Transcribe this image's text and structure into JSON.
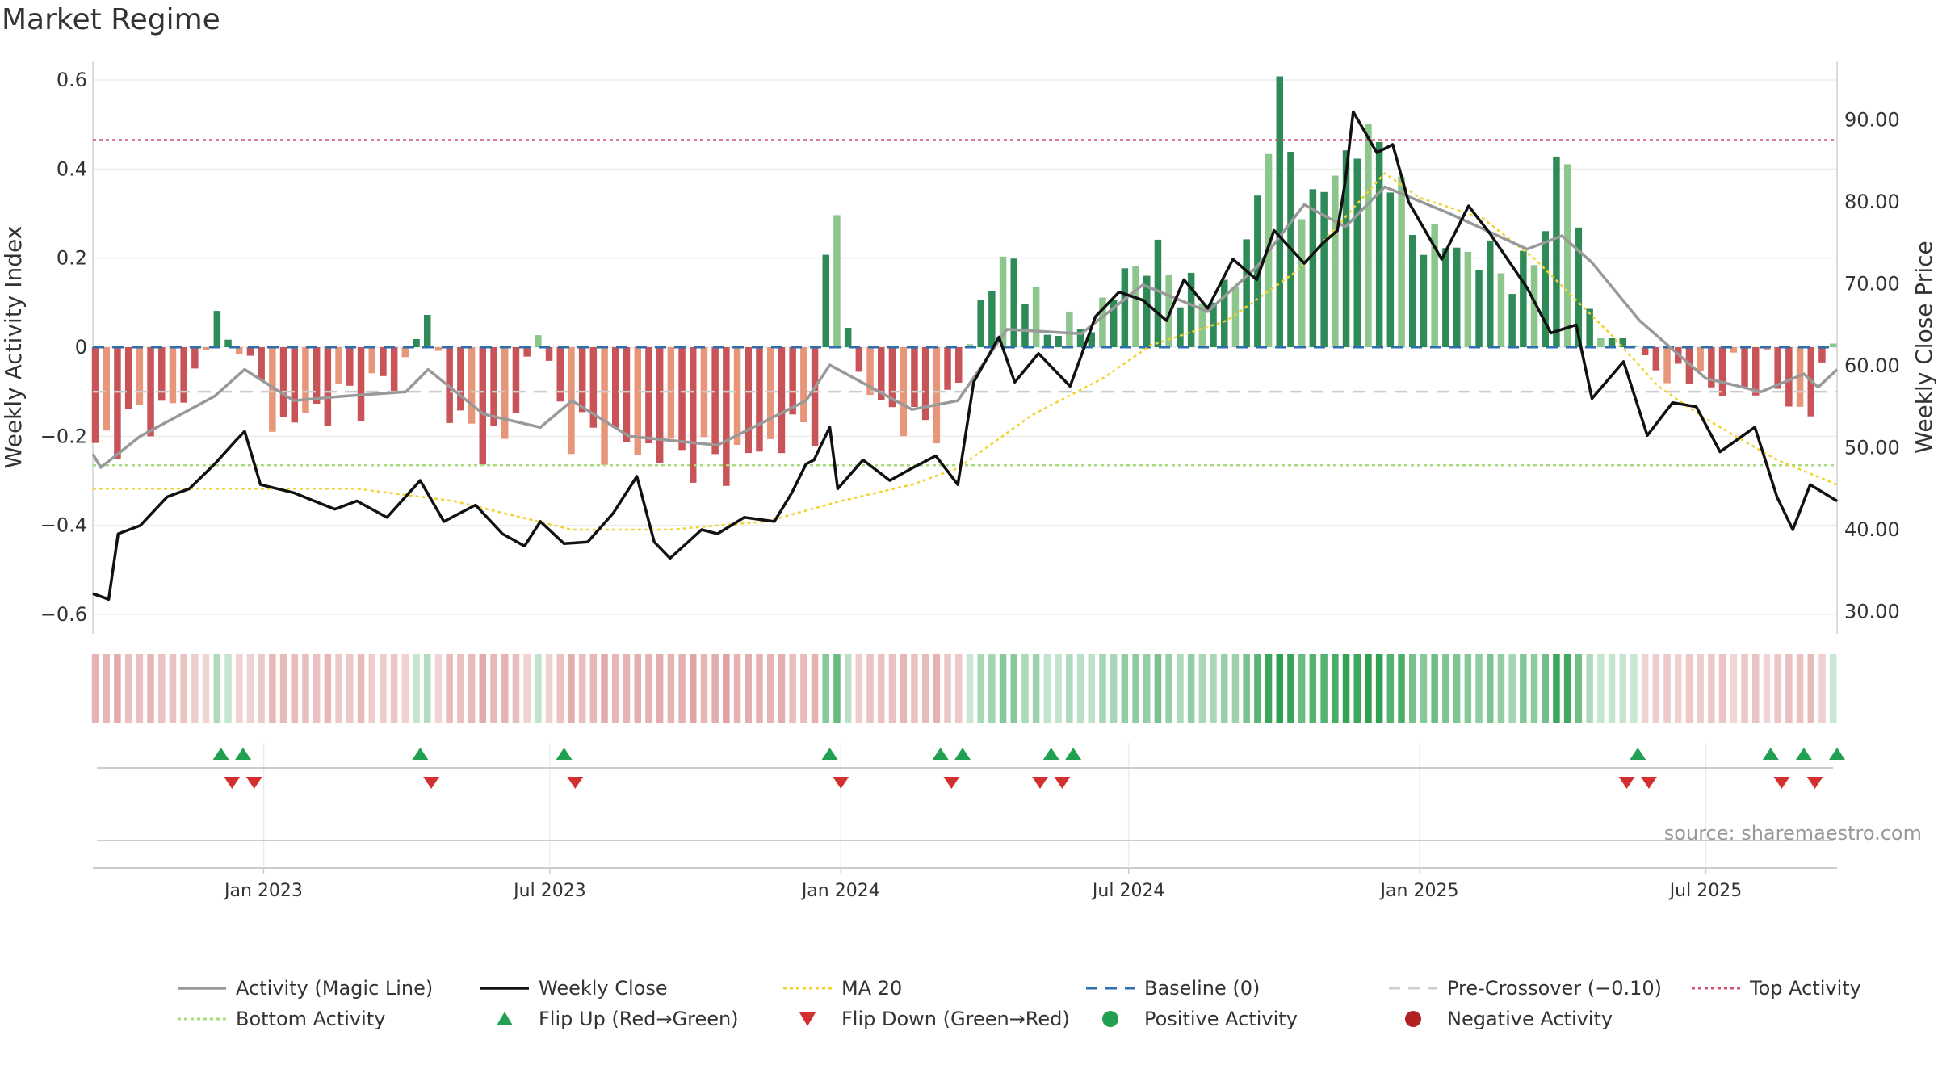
{
  "title": "Market Regime",
  "source": "source: sharemaestro.com",
  "colors": {
    "magic_line": "#999999",
    "close": "#111111",
    "ma20": "#f2d22e",
    "baseline": "#2f6fad",
    "pre_crossover": "#cccccc",
    "top_activity": "#d1526e",
    "bottom_activity": "#a8dc7a",
    "flip_up": "#22a052",
    "flip_down": "#d32f2f",
    "positive": "#22a052",
    "negative": "#b22222",
    "dark_green": "#2e8b57",
    "light_green": "#8cc68c",
    "dark_red": "#c95458",
    "light_red": "#e8967a"
  },
  "chart_data": {
    "type": "bar",
    "title": "Market Regime",
    "ylabel": "Weekly Activity Index",
    "y2label": "Weekly Close Price",
    "ylim": [
      -0.6,
      0.6
    ],
    "y2lim": [
      30,
      90
    ],
    "yticks": [
      "0.6",
      "0.4",
      "0.2",
      "0",
      "−0.2",
      "−0.4",
      "−0.6"
    ],
    "y2ticks": [
      "90.00",
      "80.00",
      "70.00",
      "60.00",
      "50.00",
      "40.00",
      "30.00"
    ],
    "xtick_labels": [
      "Jan 2023",
      "Jul 2023",
      "Jan 2024",
      "Jul 2024",
      "Jan 2025",
      "Jul 2025"
    ],
    "date_range": [
      "2022-09-15",
      "2025-09-22"
    ],
    "reference_lines": {
      "baseline": 0,
      "pre_crossover": -0.1,
      "top_activity": 0.465,
      "bottom_activity": -0.265
    },
    "activity_keypoints": [
      [
        "2022-09-15",
        -0.24
      ],
      [
        "2022-10-01",
        -0.18
      ],
      [
        "2022-10-20",
        -0.15
      ],
      [
        "2022-11-10",
        -0.12
      ],
      [
        "2022-12-01",
        0.05
      ],
      [
        "2022-12-20",
        -0.04
      ],
      [
        "2023-01-10",
        -0.18
      ],
      [
        "2023-02-15",
        -0.12
      ],
      [
        "2023-03-20",
        -0.08
      ],
      [
        "2023-04-15",
        0.07
      ],
      [
        "2023-05-01",
        -0.18
      ],
      [
        "2023-06-01",
        -0.22
      ],
      [
        "2023-06-20",
        0.05
      ],
      [
        "2023-07-10",
        -0.18
      ],
      [
        "2023-08-15",
        -0.22
      ],
      [
        "2023-09-20",
        -0.24
      ],
      [
        "2023-10-20",
        -0.26
      ],
      [
        "2023-11-20",
        -0.21
      ],
      [
        "2023-12-15",
        -0.16
      ],
      [
        "2023-12-25",
        0.37
      ],
      [
        "2024-01-10",
        -0.08
      ],
      [
        "2024-02-15",
        -0.18
      ],
      [
        "2024-03-10",
        -0.14
      ],
      [
        "2024-03-25",
        0.06
      ],
      [
        "2024-04-15",
        0.22
      ],
      [
        "2024-05-10",
        0.02
      ],
      [
        "2024-06-01",
        0.04
      ],
      [
        "2024-07-10",
        0.21
      ],
      [
        "2024-08-15",
        0.1
      ],
      [
        "2024-09-10",
        0.17
      ],
      [
        "2024-10-01",
        0.58
      ],
      [
        "2024-10-20",
        0.29
      ],
      [
        "2024-11-15",
        0.44
      ],
      [
        "2024-12-05",
        0.47
      ],
      [
        "2024-12-25",
        0.26
      ],
      [
        "2025-02-01",
        0.21
      ],
      [
        "2025-03-10",
        0.15
      ],
      [
        "2025-04-01",
        0.47
      ],
      [
        "2025-04-20",
        0.02
      ],
      [
        "2025-05-10",
        0.02
      ],
      [
        "2025-06-01",
        -0.05
      ],
      [
        "2025-07-01",
        -0.08
      ],
      [
        "2025-08-10",
        -0.06
      ],
      [
        "2025-09-01",
        -0.17
      ],
      [
        "2025-09-22",
        0.05
      ]
    ],
    "magic_line_keypoints": [
      [
        "2022-09-15",
        -0.24
      ],
      [
        "2022-09-20",
        -0.27
      ],
      [
        "2022-10-15",
        -0.2
      ],
      [
        "2022-12-01",
        -0.11
      ],
      [
        "2022-12-20",
        -0.05
      ],
      [
        "2023-01-20",
        -0.12
      ],
      [
        "2023-02-20",
        -0.11
      ],
      [
        "2023-04-01",
        -0.1
      ],
      [
        "2023-04-15",
        -0.05
      ],
      [
        "2023-05-20",
        -0.15
      ],
      [
        "2023-06-25",
        -0.18
      ],
      [
        "2023-07-15",
        -0.12
      ],
      [
        "2023-08-20",
        -0.2
      ],
      [
        "2023-10-15",
        -0.22
      ],
      [
        "2023-12-10",
        -0.12
      ],
      [
        "2023-12-25",
        -0.04
      ],
      [
        "2024-02-15",
        -0.14
      ],
      [
        "2024-03-15",
        -0.12
      ],
      [
        "2024-04-15",
        0.04
      ],
      [
        "2024-06-01",
        0.03
      ],
      [
        "2024-07-10",
        0.14
      ],
      [
        "2024-08-20",
        0.08
      ],
      [
        "2024-09-20",
        0.18
      ],
      [
        "2024-10-20",
        0.32
      ],
      [
        "2024-11-15",
        0.27
      ],
      [
        "2024-12-10",
        0.36
      ],
      [
        "2025-01-20",
        0.3
      ],
      [
        "2025-03-10",
        0.22
      ],
      [
        "2025-04-01",
        0.25
      ],
      [
        "2025-04-20",
        0.19
      ],
      [
        "2025-05-20",
        0.06
      ],
      [
        "2025-07-01",
        -0.07
      ],
      [
        "2025-08-05",
        -0.1
      ],
      [
        "2025-09-01",
        -0.06
      ],
      [
        "2025-09-10",
        -0.09
      ],
      [
        "2025-09-22",
        -0.05
      ]
    ],
    "close_keypoints": [
      [
        "2022-09-15",
        32.2
      ],
      [
        "2022-09-25",
        31.5
      ],
      [
        "2022-10-01",
        39.5
      ],
      [
        "2022-10-15",
        40.5
      ],
      [
        "2022-11-01",
        44.0
      ],
      [
        "2022-11-15",
        45.0
      ],
      [
        "2022-12-01",
        48.0
      ],
      [
        "2022-12-15",
        51.0
      ],
      [
        "2022-12-20",
        52.0
      ],
      [
        "2022-12-30",
        45.5
      ],
      [
        "2023-01-20",
        44.5
      ],
      [
        "2023-02-15",
        42.5
      ],
      [
        "2023-03-01",
        43.5
      ],
      [
        "2023-03-20",
        41.5
      ],
      [
        "2023-04-10",
        46.0
      ],
      [
        "2023-04-25",
        41.0
      ],
      [
        "2023-05-15",
        43.0
      ],
      [
        "2023-06-01",
        39.5
      ],
      [
        "2023-06-15",
        38.0
      ],
      [
        "2023-06-25",
        41.0
      ],
      [
        "2023-07-10",
        38.3
      ],
      [
        "2023-07-25",
        38.5
      ],
      [
        "2023-08-10",
        42.0
      ],
      [
        "2023-08-25",
        46.5
      ],
      [
        "2023-09-05",
        38.5
      ],
      [
        "2023-09-15",
        36.5
      ],
      [
        "2023-10-05",
        40.0
      ],
      [
        "2023-10-15",
        39.5
      ],
      [
        "2023-11-01",
        41.5
      ],
      [
        "2023-11-20",
        41.0
      ],
      [
        "2023-12-01",
        44.5
      ],
      [
        "2023-12-10",
        48.0
      ],
      [
        "2023-12-15",
        48.5
      ],
      [
        "2023-12-25",
        52.5
      ],
      [
        "2023-12-30",
        45.0
      ],
      [
        "2024-01-15",
        48.5
      ],
      [
        "2024-02-01",
        46.0
      ],
      [
        "2024-02-15",
        47.5
      ],
      [
        "2024-03-01",
        49.0
      ],
      [
        "2024-03-15",
        45.5
      ],
      [
        "2024-03-25",
        58.0
      ],
      [
        "2024-04-10",
        63.5
      ],
      [
        "2024-04-20",
        58.0
      ],
      [
        "2024-05-05",
        61.5
      ],
      [
        "2024-05-25",
        57.5
      ],
      [
        "2024-06-10",
        66.0
      ],
      [
        "2024-06-25",
        69.0
      ],
      [
        "2024-07-10",
        68.0
      ],
      [
        "2024-07-25",
        65.5
      ],
      [
        "2024-08-05",
        70.5
      ],
      [
        "2024-08-20",
        67.0
      ],
      [
        "2024-09-05",
        73.0
      ],
      [
        "2024-09-20",
        70.5
      ],
      [
        "2024-10-01",
        76.5
      ],
      [
        "2024-10-20",
        72.5
      ],
      [
        "2024-11-01",
        75.0
      ],
      [
        "2024-11-10",
        76.5
      ],
      [
        "2024-11-15",
        82.5
      ],
      [
        "2024-11-20",
        91.0
      ],
      [
        "2024-12-05",
        86.0
      ],
      [
        "2024-12-15",
        87.0
      ],
      [
        "2024-12-25",
        80.0
      ],
      [
        "2025-01-15",
        73.0
      ],
      [
        "2025-02-01",
        79.5
      ],
      [
        "2025-02-15",
        76.0
      ],
      [
        "2025-03-10",
        69.5
      ],
      [
        "2025-03-25",
        64.0
      ],
      [
        "2025-04-10",
        65.0
      ],
      [
        "2025-04-20",
        56.0
      ],
      [
        "2025-05-10",
        60.5
      ],
      [
        "2025-05-25",
        51.5
      ],
      [
        "2025-06-10",
        55.5
      ],
      [
        "2025-06-25",
        55.0
      ],
      [
        "2025-07-10",
        49.5
      ],
      [
        "2025-08-01",
        52.5
      ],
      [
        "2025-08-15",
        44.0
      ],
      [
        "2025-08-25",
        40.0
      ],
      [
        "2025-09-05",
        45.5
      ],
      [
        "2025-09-22",
        43.5
      ]
    ],
    "ma20_keypoints": [
      [
        "2022-09-15",
        45.0
      ],
      [
        "2023-03-01",
        45.0
      ],
      [
        "2023-05-01",
        43.5
      ],
      [
        "2023-07-15",
        40.0
      ],
      [
        "2023-09-15",
        40.0
      ],
      [
        "2023-10-15",
        40.5
      ],
      [
        "2023-11-15",
        41.0
      ],
      [
        "2024-01-01",
        43.5
      ],
      [
        "2024-02-15",
        45.5
      ],
      [
        "2024-03-15",
        47.5
      ],
      [
        "2024-05-01",
        54.0
      ],
      [
        "2024-06-15",
        58.5
      ],
      [
        "2024-07-15",
        62.5
      ],
      [
        "2024-09-01",
        65.5
      ],
      [
        "2024-10-15",
        71.5
      ],
      [
        "2024-12-10",
        83.5
      ],
      [
        "2025-01-01",
        80.5
      ],
      [
        "2025-02-10",
        78.0
      ],
      [
        "2025-03-15",
        73.0
      ],
      [
        "2025-05-01",
        64.0
      ],
      [
        "2025-06-01",
        57.5
      ],
      [
        "2025-07-01",
        53.5
      ],
      [
        "2025-08-15",
        48.5
      ],
      [
        "2025-09-22",
        45.5
      ]
    ],
    "flip_up_dates": [
      "2022-12-05",
      "2022-12-19",
      "2023-04-10",
      "2023-07-10",
      "2023-12-25",
      "2024-03-04",
      "2024-03-18",
      "2024-05-13",
      "2024-05-27",
      "2025-05-19",
      "2025-08-11",
      "2025-09-01",
      "2025-09-22"
    ],
    "flip_down_dates": [
      "2022-12-12",
      "2022-12-26",
      "2023-04-17",
      "2023-07-17",
      "2024-01-01",
      "2024-03-11",
      "2024-05-06",
      "2024-05-20",
      "2025-05-12",
      "2025-05-26",
      "2025-08-18",
      "2025-09-08"
    ]
  },
  "legend": [
    {
      "label": "Activity (Magic Line)",
      "kind": "line",
      "color": "#999999"
    },
    {
      "label": "Weekly Close",
      "kind": "line",
      "color": "#111111"
    },
    {
      "label": "MA 20",
      "kind": "dotted",
      "color": "#f2d22e"
    },
    {
      "label": "Baseline (0)",
      "kind": "dashed",
      "color": "#2f6fad"
    },
    {
      "label": "Pre-Crossover (−0.10)",
      "kind": "dashed",
      "color": "#cccccc"
    },
    {
      "label": "Top Activity",
      "kind": "dotted",
      "color": "#d1526e"
    },
    {
      "label": "Bottom Activity",
      "kind": "dotted",
      "color": "#a8dc7a"
    },
    {
      "label": "Flip Up (Red→Green)",
      "kind": "tri-up",
      "color": "#22a052"
    },
    {
      "label": "Flip Down (Green→Red)",
      "kind": "tri-down",
      "color": "#d32f2f"
    },
    {
      "label": "Positive Activity",
      "kind": "dot",
      "color": "#22a052"
    },
    {
      "label": "Negative Activity",
      "kind": "dot",
      "color": "#b22222"
    }
  ]
}
